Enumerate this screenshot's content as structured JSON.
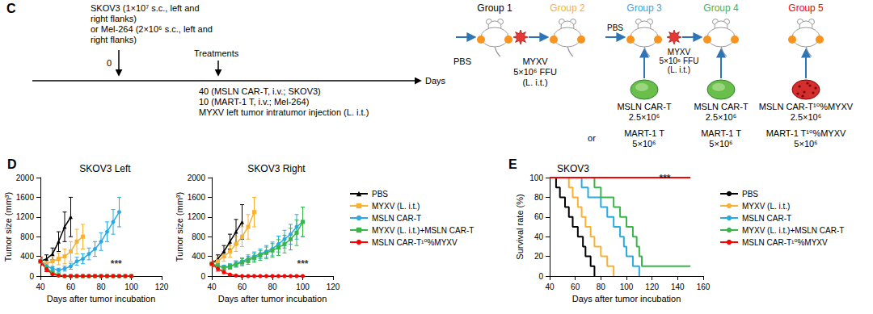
{
  "diagram": {
    "panel": "C",
    "inoculation": [
      "SKOV3 (1×10⁷ s.c., left and",
      "right flanks)",
      "or Mel-264 (2×10⁶ s.c., left and",
      "right flanks)"
    ],
    "start_day": "0",
    "treatments": "Treatments",
    "treatment_notes": [
      "40 (MSLN CAR-T, i.v.; SKOV3)",
      "10 (MART-1 T, i.v.; Mel-264)",
      "MYXV left tumor intratumor injection (L. i.t.)"
    ],
    "axis_label": "Days",
    "alternative": "or",
    "groups": [
      {
        "label": "Group 1",
        "color": "#000000",
        "pretreatment": {
          "kind": "pbs",
          "text": [
            "PBS"
          ]
        }
      },
      {
        "label": "Group 2",
        "color": "#f8b133",
        "pretreatment": {
          "kind": "virus",
          "text": [
            "MYXV",
            "5×10⁶ FFU",
            "(L. i.t.)"
          ]
        }
      },
      {
        "label": "Group 3",
        "color": "#29abe2",
        "pretreatment": {
          "kind": "pbs",
          "text": [
            "PBS"
          ]
        },
        "cells": {
          "kind": "plain",
          "options": [
            [
              "MSLN CAR-T",
              "2.5×10⁶"
            ],
            [
              "MART-1 T",
              "5×10⁶"
            ]
          ]
        }
      },
      {
        "label": "Group 4",
        "color": "#39b54a",
        "pretreatment": {
          "kind": "virus",
          "text": [
            "MYXV",
            "5×10⁶ FFU",
            "(L. i.t.)"
          ]
        },
        "cells": {
          "kind": "plain",
          "options": [
            [
              "MSLN CAR-T",
              "2.5×10⁶"
            ],
            [
              "MART-1 T",
              "5×10⁶"
            ]
          ]
        }
      },
      {
        "label": "Group 5",
        "color": "#ff0000",
        "cells": {
          "kind": "loaded",
          "options": [
            [
              "MSLN CAR-T¹⁰%MYXV",
              "2.5×10⁶"
            ],
            [
              "MART-1 T¹⁰%MYXV",
              "5×10⁶"
            ]
          ]
        }
      }
    ]
  },
  "chart_data": [
    {
      "type": "line",
      "panel": "D",
      "title": "SKOV3 Left",
      "x_label": "Days after tumor incubation",
      "y_label": "Tumor size (mm³)",
      "x": [
        40,
        44,
        48,
        52,
        56,
        60,
        64,
        68,
        72,
        76,
        80,
        84,
        88,
        92,
        96,
        100
      ],
      "xlim": [
        40,
        120
      ],
      "xticks": [
        40,
        60,
        80,
        100,
        120
      ],
      "ylim": [
        0,
        2000
      ],
      "yticks": [
        0,
        400,
        800,
        1200,
        1600,
        2000
      ],
      "grid": false,
      "series": [
        {
          "name": "PBS",
          "color": "#000000",
          "marker": "triangle",
          "values": [
            300,
            350,
            450,
            700,
            1000,
            1200,
            null,
            null,
            null,
            null,
            null,
            null,
            null,
            null,
            null,
            null
          ],
          "errors": [
            60,
            80,
            120,
            200,
            300,
            400,
            null,
            null,
            null,
            null,
            null,
            null,
            null,
            null,
            null,
            null
          ]
        },
        {
          "name": "MYXV (L. i.t.)",
          "color": "#f8b133",
          "marker": "square",
          "values": [
            300,
            250,
            300,
            350,
            400,
            500,
            700,
            800,
            null,
            null,
            null,
            null,
            null,
            null,
            null,
            null
          ],
          "errors": [
            80,
            80,
            100,
            120,
            150,
            200,
            250,
            250,
            null,
            null,
            null,
            null,
            null,
            null,
            null,
            null
          ]
        },
        {
          "name": "MSLN CAR-T",
          "color": "#29abe2",
          "marker": "circle",
          "values": [
            300,
            200,
            150,
            120,
            150,
            200,
            300,
            350,
            450,
            550,
            700,
            900,
            1100,
            1300,
            null,
            null
          ],
          "errors": [
            50,
            50,
            40,
            40,
            50,
            60,
            80,
            100,
            120,
            150,
            180,
            200,
            250,
            300,
            null,
            null
          ]
        },
        {
          "name": "MYXV (L. i.t.)+MSLN CAR-T",
          "color": "#39b54a",
          "marker": "square",
          "values": [
            300,
            170,
            70,
            20,
            0,
            0,
            0,
            0,
            0,
            0,
            0,
            0,
            0,
            0,
            0,
            0
          ],
          "errors": [
            80,
            60,
            30,
            10,
            0,
            0,
            0,
            0,
            0,
            0,
            0,
            0,
            0,
            0,
            0,
            0
          ]
        },
        {
          "name": "MSLN CAR-T¹⁰%MYXV",
          "color": "#ff0000",
          "marker": "circle",
          "values": [
            300,
            140,
            40,
            10,
            0,
            0,
            0,
            0,
            0,
            0,
            0,
            0,
            0,
            0,
            0,
            0
          ],
          "errors": [
            80,
            50,
            20,
            10,
            0,
            0,
            0,
            0,
            0,
            0,
            0,
            0,
            0,
            0,
            0,
            0
          ]
        }
      ],
      "annotations": [
        {
          "text": "***",
          "x": 90,
          "y": 60
        }
      ]
    },
    {
      "type": "line",
      "title": "SKOV3 Right",
      "x_label": "Days after tumor incubation",
      "y_label": "Tumor size (mm³)",
      "x": [
        40,
        44,
        48,
        52,
        56,
        60,
        64,
        68,
        72,
        76,
        80,
        84,
        88,
        92,
        96,
        100
      ],
      "xlim": [
        40,
        120
      ],
      "xticks": [
        40,
        60,
        80,
        100,
        120
      ],
      "ylim": [
        0,
        2000
      ],
      "yticks": [
        0,
        400,
        800,
        1200,
        1600,
        2000
      ],
      "grid": false,
      "legend": "right",
      "series": [
        {
          "name": "PBS",
          "color": "#000000",
          "marker": "triangle",
          "values": [
            250,
            350,
            500,
            700,
            900,
            1100,
            null,
            null,
            null,
            null,
            null,
            null,
            null,
            null,
            null,
            null
          ],
          "errors": [
            50,
            80,
            120,
            150,
            250,
            350,
            null,
            null,
            null,
            null,
            null,
            null,
            null,
            null,
            null,
            null
          ]
        },
        {
          "name": "MYXV (L. i.t.)",
          "color": "#f8b133",
          "marker": "square",
          "values": [
            250,
            300,
            400,
            500,
            650,
            800,
            1000,
            1300,
            null,
            null,
            null,
            null,
            null,
            null,
            null,
            null
          ],
          "errors": [
            60,
            80,
            100,
            120,
            150,
            200,
            250,
            300,
            null,
            null,
            null,
            null,
            null,
            null,
            null,
            null
          ]
        },
        {
          "name": "MSLN CAR-T",
          "color": "#29abe2",
          "marker": "circle",
          "values": [
            250,
            200,
            180,
            200,
            250,
            300,
            350,
            400,
            450,
            500,
            550,
            650,
            750,
            850,
            1000,
            1100
          ],
          "errors": [
            50,
            50,
            40,
            50,
            60,
            70,
            80,
            90,
            100,
            120,
            140,
            160,
            180,
            200,
            250,
            300
          ]
        },
        {
          "name": "MYXV (L. i.t.)+MSLN CAR-T",
          "color": "#39b54a",
          "marker": "square",
          "values": [
            250,
            200,
            170,
            190,
            240,
            280,
            320,
            370,
            420,
            470,
            520,
            580,
            650,
            750,
            880,
            1100
          ],
          "errors": [
            50,
            50,
            40,
            50,
            60,
            70,
            80,
            90,
            100,
            120,
            140,
            160,
            180,
            220,
            260,
            300
          ]
        },
        {
          "name": "MSLN CAR-T¹⁰%MYXV",
          "color": "#ff0000",
          "marker": "circle",
          "values": [
            250,
            150,
            80,
            30,
            10,
            0,
            0,
            0,
            0,
            0,
            0,
            0,
            0,
            0,
            0,
            0
          ],
          "errors": [
            60,
            50,
            30,
            15,
            10,
            0,
            0,
            0,
            0,
            0,
            0,
            0,
            0,
            0,
            0,
            0
          ]
        }
      ],
      "annotations": [
        {
          "text": "***",
          "x": 100,
          "y": 60
        }
      ]
    },
    {
      "type": "step",
      "panel": "E",
      "title": "SKOV3",
      "x_label": "Days after tumor incubation",
      "y_label": "Survival rate (%)",
      "xlim": [
        40,
        160
      ],
      "xticks": [
        40,
        60,
        80,
        100,
        120,
        140,
        160
      ],
      "ylim": [
        0,
        100
      ],
      "yticks": [
        0,
        20,
        40,
        60,
        80,
        100
      ],
      "grid": false,
      "legend": "right",
      "series": [
        {
          "name": "PBS",
          "color": "#000000",
          "x": [
            40,
            45,
            48,
            52,
            55,
            58,
            62,
            66,
            68,
            72,
            75
          ],
          "values": [
            100,
            90,
            80,
            70,
            60,
            50,
            40,
            30,
            20,
            10,
            0
          ]
        },
        {
          "name": "MYXV (L. i.t.)",
          "color": "#f8b133",
          "x": [
            40,
            55,
            58,
            62,
            65,
            68,
            72,
            75,
            80,
            85,
            90
          ],
          "values": [
            100,
            90,
            80,
            70,
            60,
            50,
            40,
            30,
            20,
            10,
            0
          ]
        },
        {
          "name": "MSLN CAR-T",
          "color": "#29abe2",
          "x": [
            40,
            65,
            70,
            80,
            85,
            90,
            95,
            98,
            100,
            105,
            110
          ],
          "values": [
            100,
            90,
            80,
            70,
            60,
            50,
            40,
            30,
            20,
            10,
            0
          ]
        },
        {
          "name": "MYXV (L. i.t.)+MSLN CAR-T",
          "color": "#39b54a",
          "x": [
            40,
            75,
            80,
            90,
            95,
            100,
            105,
            108,
            110,
            112,
            150
          ],
          "values": [
            100,
            90,
            80,
            70,
            60,
            50,
            40,
            30,
            20,
            10,
            10
          ]
        },
        {
          "name": "MSLN CAR-T¹⁰%MYXV",
          "color": "#ff0000",
          "x": [
            40,
            150
          ],
          "values": [
            100,
            100
          ]
        }
      ],
      "annotations": [
        {
          "text": "***",
          "x": 130,
          "y": 90
        }
      ]
    }
  ]
}
